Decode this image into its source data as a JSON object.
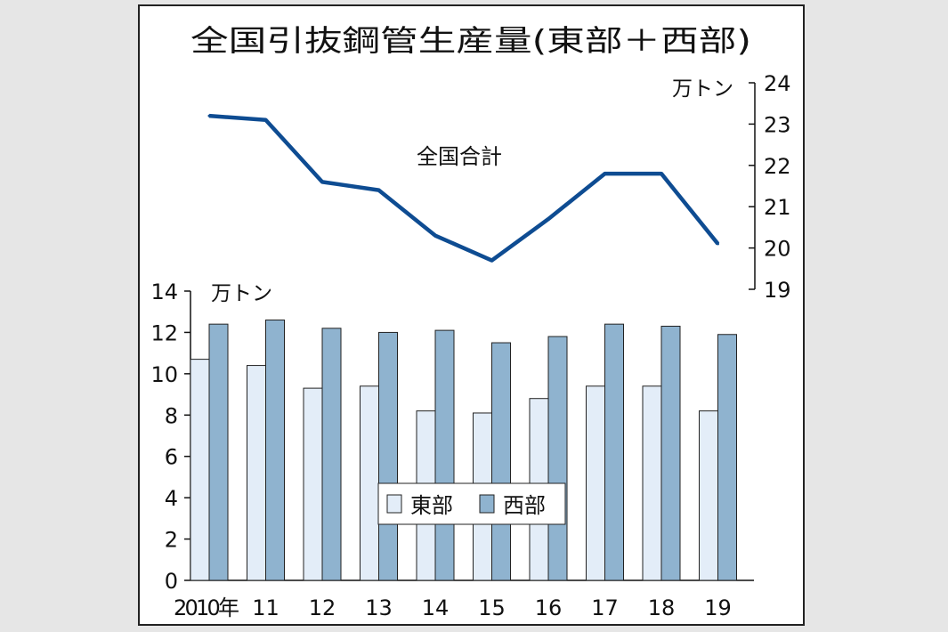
{
  "chart_data": [
    {
      "type": "line",
      "title": "全国引抜鋼管生産量(東部＋西部)",
      "unit": "万トン",
      "annotation": "全国合計",
      "y_axis_side": "right",
      "ylim": [
        19,
        24
      ],
      "y_ticks": [
        "24",
        "23",
        "22",
        "21",
        "20",
        "19"
      ],
      "x": [
        "2010年",
        "11",
        "12",
        "13",
        "14",
        "15",
        "16",
        "17",
        "18",
        "19"
      ],
      "series": [
        {
          "name": "全国合計",
          "values": [
            23.2,
            23.1,
            21.6,
            21.4,
            20.3,
            19.7,
            20.7,
            21.8,
            21.8,
            20.1
          ]
        }
      ],
      "color": "#0e4c92"
    },
    {
      "type": "bar",
      "unit": "万トン",
      "ylim": [
        0,
        14
      ],
      "y_ticks": [
        "14",
        "12",
        "10",
        "8",
        "6",
        "4",
        "2",
        "0"
      ],
      "categories": [
        "2010年",
        "11",
        "12",
        "13",
        "14",
        "15",
        "16",
        "17",
        "18",
        "19"
      ],
      "series": [
        {
          "name": "東部",
          "color": "#e3edf8",
          "values": [
            10.7,
            10.4,
            9.3,
            9.4,
            8.2,
            8.1,
            8.8,
            9.4,
            9.4,
            8.2
          ]
        },
        {
          "name": "西部",
          "color": "#8fb3cf",
          "values": [
            12.4,
            12.6,
            12.2,
            12.0,
            12.1,
            11.5,
            11.8,
            12.4,
            12.3,
            11.9
          ]
        }
      ],
      "legend_position": "center"
    }
  ]
}
